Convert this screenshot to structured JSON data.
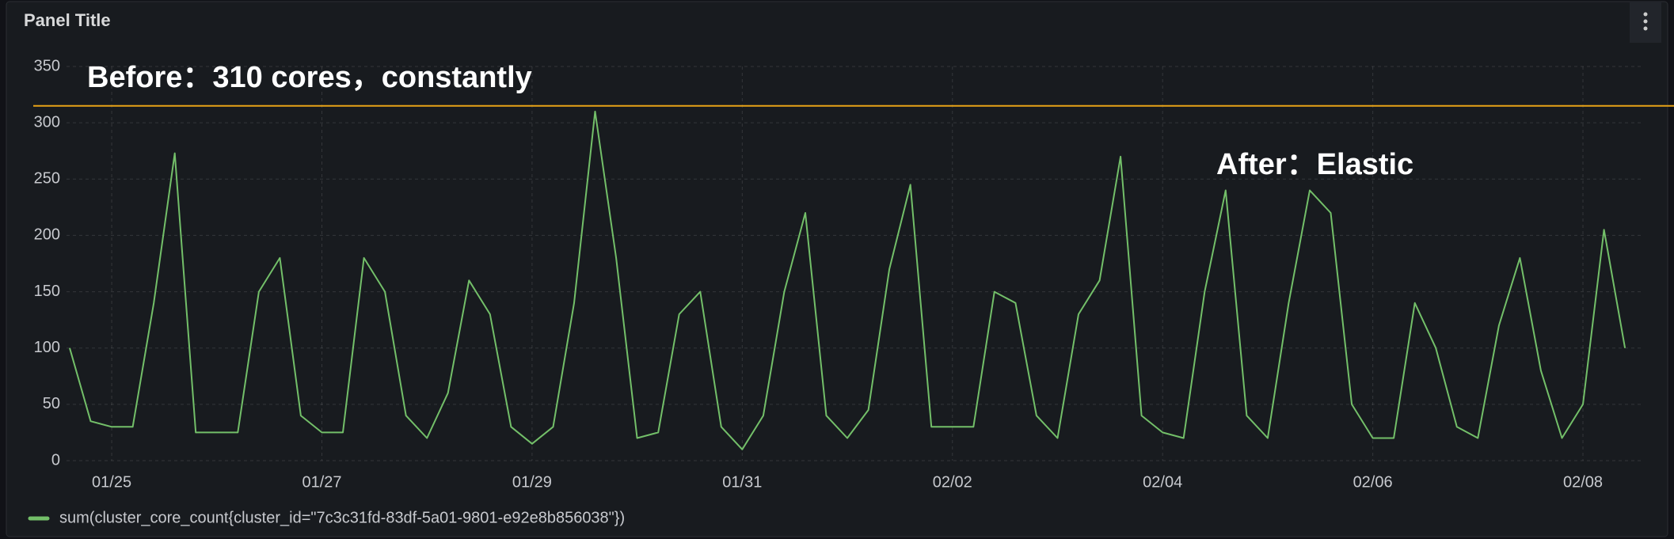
{
  "chart_data": {
    "type": "line",
    "title": "Panel Title",
    "annotations": [
      "Before：310 cores，constantly",
      "After：Elastic"
    ],
    "reference_line": {
      "value": 315,
      "color": "#e8a317"
    },
    "xlim": [
      24.57,
      39.58
    ],
    "xticks": [
      {
        "value": 25,
        "label": "01/25"
      },
      {
        "value": 27,
        "label": "01/27"
      },
      {
        "value": 29,
        "label": "01/29"
      },
      {
        "value": 31,
        "label": "01/31"
      },
      {
        "value": 33,
        "label": "02/02"
      },
      {
        "value": 35,
        "label": "02/04"
      },
      {
        "value": 37,
        "label": "02/06"
      },
      {
        "value": 39,
        "label": "02/08"
      }
    ],
    "ylim": [
      0,
      350
    ],
    "yticks": [
      0,
      50,
      100,
      150,
      200,
      250,
      300,
      350
    ],
    "grid": true,
    "legend": "bottom-left",
    "x": [
      24.6,
      24.8,
      25,
      25.2,
      25.4,
      25.6,
      25.8,
      26,
      26.2,
      26.4,
      26.6,
      26.8,
      27,
      27.2,
      27.4,
      27.6,
      27.8,
      28,
      28.2,
      28.4,
      28.6,
      28.8,
      29,
      29.2,
      29.4,
      29.6,
      29.8,
      30,
      30.2,
      30.4,
      30.6,
      30.8,
      31,
      31.2,
      31.4,
      31.6,
      31.8,
      32,
      32.2,
      32.4,
      32.6,
      32.8,
      33,
      33.2,
      33.4,
      33.6,
      33.8,
      34,
      34.2,
      34.4,
      34.6,
      34.8,
      35,
      35.2,
      35.4,
      35.6,
      35.8,
      36,
      36.2,
      36.4,
      36.6,
      36.8,
      37,
      37.2,
      37.4,
      37.6,
      37.8,
      38,
      38.2,
      38.4,
      38.6,
      38.8,
      39,
      39.2,
      39.4
    ],
    "series": [
      {
        "name": "sum(cluster_core_count{cluster_id=\"7c3c31fd-83df-5a01-9801-e92e8b856038\"})",
        "color": "#73bf69",
        "values": [
          100,
          35,
          30,
          30,
          140,
          273,
          25,
          25,
          25,
          150,
          180,
          40,
          25,
          25,
          180,
          150,
          40,
          20,
          60,
          160,
          130,
          30,
          15,
          30,
          140,
          310,
          180,
          20,
          25,
          130,
          150,
          30,
          10,
          40,
          150,
          220,
          40,
          20,
          45,
          170,
          245,
          30,
          30,
          30,
          150,
          140,
          40,
          20,
          130,
          160,
          270,
          40,
          25,
          20,
          150,
          240,
          40,
          20,
          140,
          240,
          220,
          50,
          20,
          20,
          140,
          100,
          30,
          20,
          120,
          180,
          80,
          20,
          50,
          205,
          100
        ]
      }
    ]
  }
}
